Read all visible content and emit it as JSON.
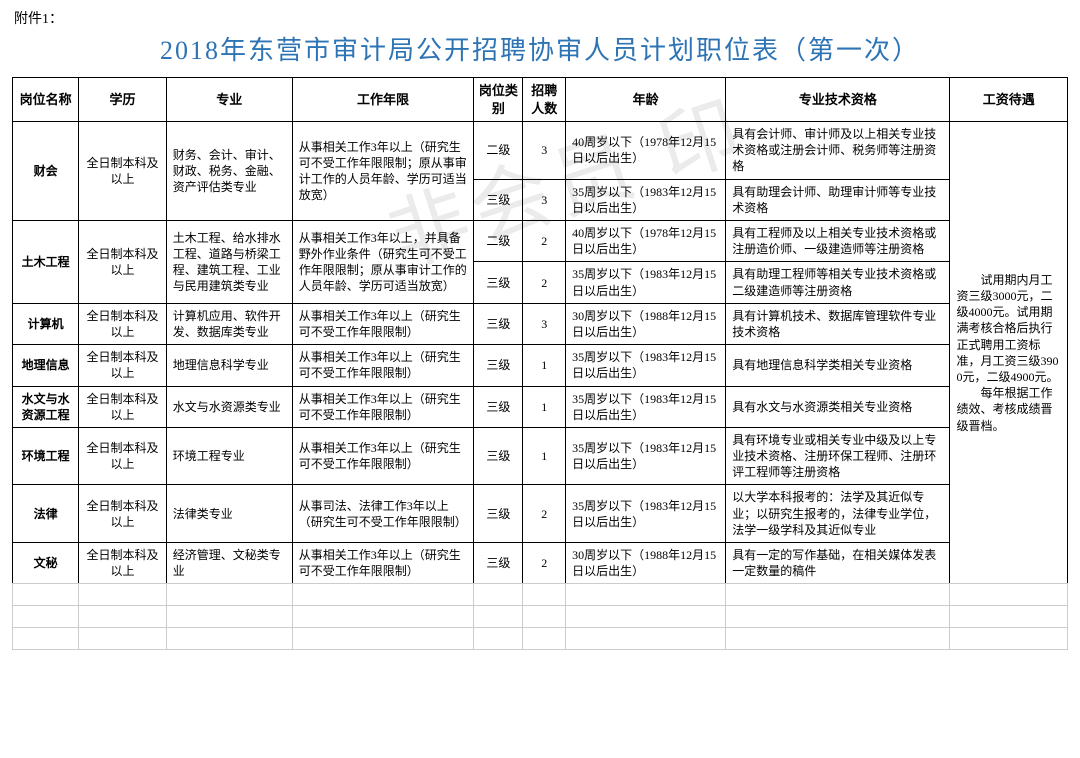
{
  "attach_label": "附件1：",
  "title": "2018年东营市审计局公开招聘协审人员计划职位表（第一次）",
  "headers": [
    "岗位名称",
    "学历",
    "专业",
    "工作年限",
    "岗位类别",
    "招聘人数",
    "年龄",
    "专业技术资格",
    "工资待遇"
  ],
  "common": {
    "edu": "全日制本科及以上",
    "salary": "　　试用期内月工资三级3000元，二级4000元。试用期满考核合格后执行正式聘用工资标准，月工资三级3900元，二级4900元。\n　　每年根据工作绩效、考核成绩晋级晋档。"
  },
  "rows": [
    {
      "name": "财会",
      "major": "财务、会计、审计、财政、税务、金融、资产评估类专业",
      "work": "从事相关工作3年以上（研究生可不受工作年限限制；原从事审计工作的人员年龄、学历可适当放宽）",
      "sub": [
        {
          "level": "二级",
          "num": "3",
          "age": "40周岁以下（1978年12月15日以后出生）",
          "qual": "具有会计师、审计师及以上相关专业技术资格或注册会计师、税务师等注册资格"
        },
        {
          "level": "三级",
          "num": "3",
          "age": "35周岁以下（1983年12月15日以后出生）",
          "qual": "具有助理会计师、助理审计师等专业技术资格"
        }
      ]
    },
    {
      "name": "土木工程",
      "major": "土木工程、给水排水工程、道路与桥梁工程、建筑工程、工业与民用建筑类专业",
      "work": "从事相关工作3年以上，并具备野外作业条件（研究生可不受工作年限限制；原从事审计工作的人员年龄、学历可适当放宽）",
      "sub": [
        {
          "level": "二级",
          "num": "2",
          "age": "40周岁以下（1978年12月15日以后出生）",
          "qual": "具有工程师及以上相关专业技术资格或注册造价师、一级建造师等注册资格"
        },
        {
          "level": "三级",
          "num": "2",
          "age": "35周岁以下（1983年12月15日以后出生）",
          "qual": "具有助理工程师等相关专业技术资格或二级建造师等注册资格"
        }
      ]
    },
    {
      "name": "计算机",
      "major": "计算机应用、软件开发、数据库类专业",
      "work": "从事相关工作3年以上（研究生可不受工作年限限制）",
      "sub": [
        {
          "level": "三级",
          "num": "3",
          "age": "30周岁以下（1988年12月15日以后出生）",
          "qual": "具有计算机技术、数据库管理软件专业技术资格"
        }
      ]
    },
    {
      "name": "地理信息",
      "major": "地理信息科学专业",
      "work": "从事相关工作3年以上（研究生可不受工作年限限制）",
      "sub": [
        {
          "level": "三级",
          "num": "1",
          "age": "35周岁以下（1983年12月15日以后出生）",
          "qual": "具有地理信息科学类相关专业资格"
        }
      ]
    },
    {
      "name": "水文与水资源工程",
      "major": "水文与水资源类专业",
      "work": "从事相关工作3年以上（研究生可不受工作年限限制）",
      "sub": [
        {
          "level": "三级",
          "num": "1",
          "age": "35周岁以下（1983年12月15日以后出生）",
          "qual": "具有水文与水资源类相关专业资格"
        }
      ]
    },
    {
      "name": "环境工程",
      "major": "环境工程专业",
      "work": "从事相关工作3年以上（研究生可不受工作年限限制）",
      "sub": [
        {
          "level": "三级",
          "num": "1",
          "age": "35周岁以下（1983年12月15日以后出生）",
          "qual": "具有环境专业或相关专业中级及以上专业技术资格、注册环保工程师、注册环评工程师等注册资格"
        }
      ]
    },
    {
      "name": "法律",
      "major": "法律类专业",
      "work": "从事司法、法律工作3年以上（研究生可不受工作年限限制）",
      "sub": [
        {
          "level": "三级",
          "num": "2",
          "age": "35周岁以下（1983年12月15日以后出生）",
          "qual": "以大学本科报考的：法学及其近似专业；以研究生报考的，法律专业学位，法学一级学科及其近似专业"
        }
      ]
    },
    {
      "name": "文秘",
      "major": "经济管理、文秘类专业",
      "work": "从事相关工作3年以上（研究生可不受工作年限限制）",
      "sub": [
        {
          "level": "三级",
          "num": "2",
          "age": "30周岁以下（1988年12月15日以后出生）",
          "qual": "具有一定的写作基础，在相关媒体发表一定数量的稿件"
        }
      ]
    }
  ],
  "style": {
    "title_color": "#2e74b5",
    "border_color": "#000000",
    "watermark_text": "非会员 印"
  }
}
